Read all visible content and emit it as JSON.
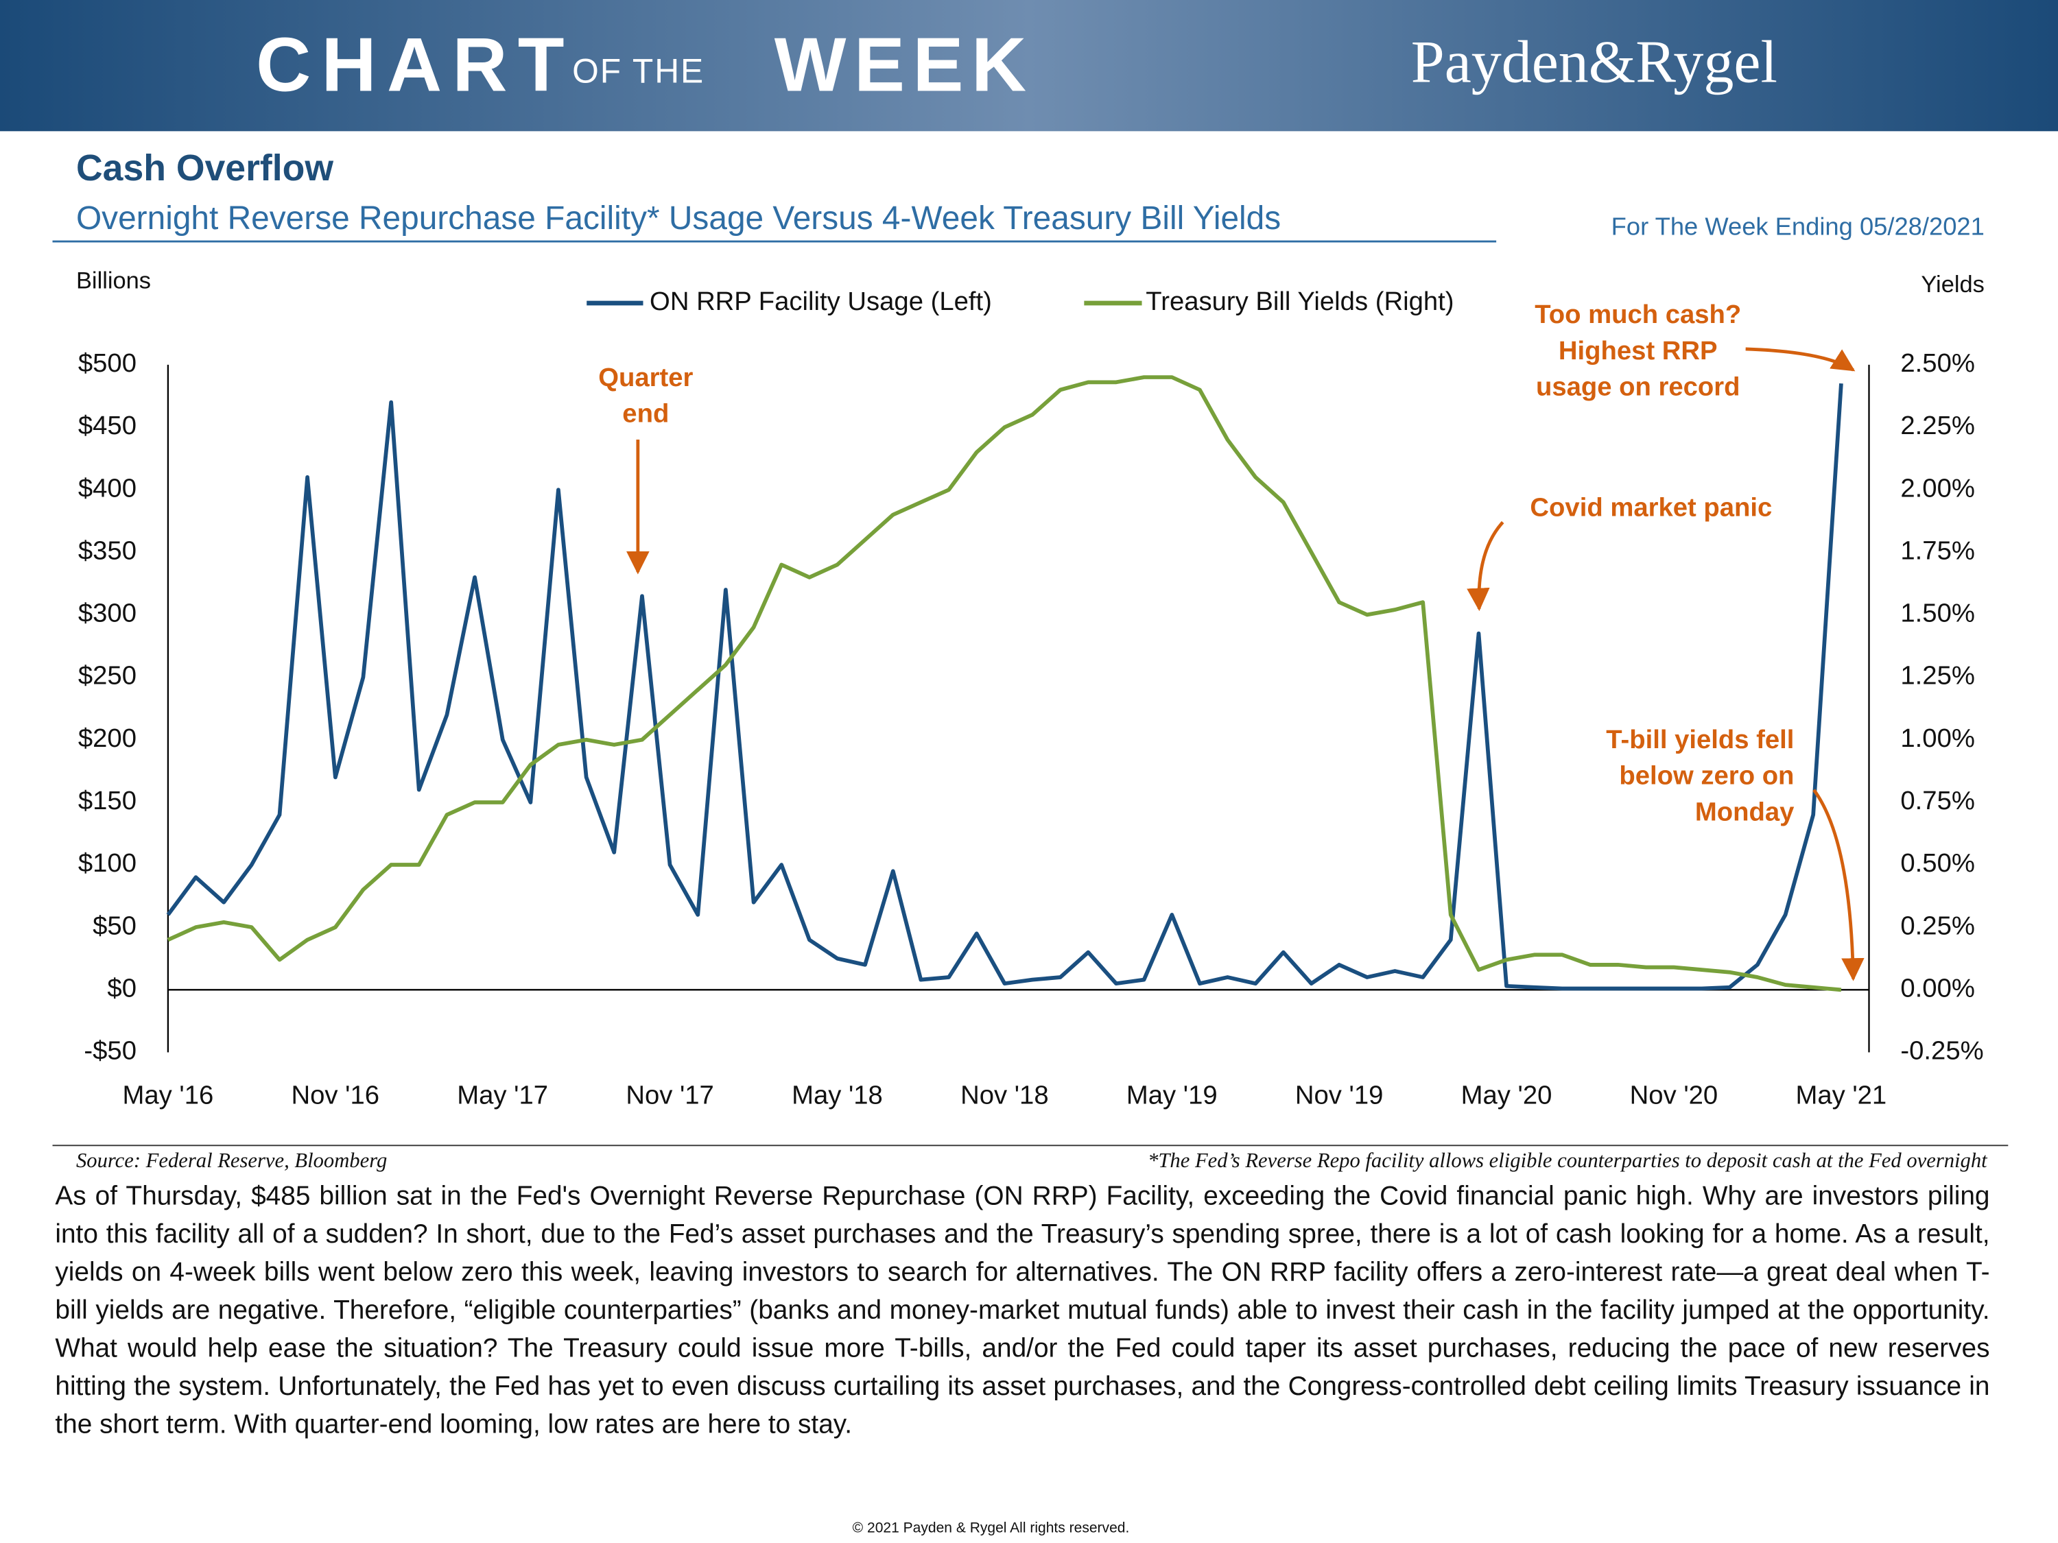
{
  "header": {
    "banner_left": "CHART",
    "banner_mid": "OF THE",
    "banner_right": "WEEK",
    "brand": "Payden&Rygel"
  },
  "chart_data": {
    "type": "line",
    "title": "Cash Overflow",
    "subtitle": "Overnight Reverse Repurchase Facility* Usage Versus 4-Week Treasury Bill Yields",
    "date_note": "For The Week Ending 05/28/2021",
    "y_label": "Billions",
    "y2_label": "Yields",
    "x": [
      "2016-05",
      "2016-06",
      "2016-07",
      "2016-08",
      "2016-09",
      "2016-10",
      "2016-11",
      "2016-12",
      "2017-01",
      "2017-02",
      "2017-03",
      "2017-04",
      "2017-05",
      "2017-06",
      "2017-07",
      "2017-08",
      "2017-09",
      "2017-10",
      "2017-11",
      "2017-12",
      "2018-01",
      "2018-02",
      "2018-03",
      "2018-04",
      "2018-05",
      "2018-06",
      "2018-07",
      "2018-08",
      "2018-09",
      "2018-10",
      "2018-11",
      "2018-12",
      "2019-01",
      "2019-02",
      "2019-03",
      "2019-04",
      "2019-05",
      "2019-06",
      "2019-07",
      "2019-08",
      "2019-09",
      "2019-10",
      "2019-11",
      "2019-12",
      "2020-01",
      "2020-02",
      "2020-03",
      "2020-04",
      "2020-05",
      "2020-06",
      "2020-07",
      "2020-08",
      "2020-09",
      "2020-10",
      "2020-11",
      "2020-12",
      "2021-01",
      "2021-02",
      "2021-03",
      "2021-04",
      "2021-05"
    ],
    "xlim": [
      "2016-05",
      "2021-06"
    ],
    "xticks": [
      {
        "value": "2016-05",
        "label": "May '16"
      },
      {
        "value": "2016-11",
        "label": "Nov '16"
      },
      {
        "value": "2017-05",
        "label": "May '17"
      },
      {
        "value": "2017-11",
        "label": "Nov '17"
      },
      {
        "value": "2018-05",
        "label": "May '18"
      },
      {
        "value": "2018-11",
        "label": "Nov '18"
      },
      {
        "value": "2019-05",
        "label": "May '19"
      },
      {
        "value": "2019-11",
        "label": "Nov '19"
      },
      {
        "value": "2020-05",
        "label": "May '20"
      },
      {
        "value": "2020-11",
        "label": "Nov '20"
      },
      {
        "value": "2021-05",
        "label": "May '21"
      }
    ],
    "ylim": [
      -50,
      500
    ],
    "yticks": [
      {
        "value": -50,
        "label": "-$50"
      },
      {
        "value": 0,
        "label": "$0"
      },
      {
        "value": 50,
        "label": "$50"
      },
      {
        "value": 100,
        "label": "$100"
      },
      {
        "value": 150,
        "label": "$150"
      },
      {
        "value": 200,
        "label": "$200"
      },
      {
        "value": 250,
        "label": "$250"
      },
      {
        "value": 300,
        "label": "$300"
      },
      {
        "value": 350,
        "label": "$350"
      },
      {
        "value": 400,
        "label": "$400"
      },
      {
        "value": 450,
        "label": "$450"
      },
      {
        "value": 500,
        "label": "$500"
      }
    ],
    "y2lim": [
      -0.25,
      2.5
    ],
    "y2ticks": [
      {
        "value": -0.25,
        "label": "-0.25%"
      },
      {
        "value": 0,
        "label": "0.00%"
      },
      {
        "value": 0.25,
        "label": "0.25%"
      },
      {
        "value": 0.5,
        "label": "0.50%"
      },
      {
        "value": 0.75,
        "label": "0.75%"
      },
      {
        "value": 1,
        "label": "1.00%"
      },
      {
        "value": 1.25,
        "label": "1.25%"
      },
      {
        "value": 1.5,
        "label": "1.50%"
      },
      {
        "value": 1.75,
        "label": "1.75%"
      },
      {
        "value": 2,
        "label": "2.00%"
      },
      {
        "value": 2.25,
        "label": "2.25%"
      },
      {
        "value": 2.5,
        "label": "2.50%"
      }
    ],
    "series": [
      {
        "name": "ON RRP Facility Usage (Left)",
        "color": "#1a4f80",
        "values": [
          60,
          90,
          70,
          100,
          140,
          410,
          170,
          250,
          470,
          160,
          220,
          330,
          200,
          150,
          400,
          170,
          110,
          315,
          100,
          60,
          320,
          70,
          100,
          40,
          25,
          20,
          95,
          8,
          10,
          45,
          5,
          8,
          10,
          30,
          5,
          8,
          60,
          5,
          10,
          5,
          30,
          5,
          20,
          10,
          15,
          10,
          40,
          285,
          3,
          2,
          1,
          1,
          1,
          1,
          1,
          1,
          2,
          20,
          60,
          140,
          485
        ]
      },
      {
        "name": "Treasury Bill Yields (Right)",
        "color": "#77a03a",
        "axis": "y2",
        "values": [
          0.2,
          0.25,
          0.27,
          0.25,
          0.12,
          0.2,
          0.25,
          0.4,
          0.5,
          0.5,
          0.7,
          0.75,
          0.75,
          0.9,
          0.98,
          1.0,
          0.98,
          1.0,
          1.1,
          1.2,
          1.3,
          1.45,
          1.7,
          1.65,
          1.7,
          1.8,
          1.9,
          1.95,
          2.0,
          2.15,
          2.25,
          2.3,
          2.4,
          2.43,
          2.43,
          2.45,
          2.45,
          2.4,
          2.2,
          2.05,
          1.95,
          1.75,
          1.55,
          1.5,
          1.52,
          1.55,
          0.3,
          0.08,
          0.12,
          0.14,
          0.14,
          0.1,
          0.1,
          0.09,
          0.09,
          0.08,
          0.07,
          0.05,
          0.02,
          0.01,
          0.0
        ]
      }
    ],
    "annotations": [
      {
        "lines": [
          "Quarter",
          "end"
        ]
      },
      {
        "lines": [
          "Too much cash?",
          "Highest RRP",
          "usage on record"
        ]
      },
      {
        "lines": [
          "Covid market panic"
        ]
      },
      {
        "lines": [
          "T-bill yields fell",
          "below zero on",
          "Monday"
        ]
      }
    ],
    "source": "Source: Federal Reserve, Bloomberg",
    "footnote": "*The Fed’s Reverse Repo facility allows eligible counterparties to deposit cash at the Fed overnight"
  },
  "body": {
    "paragraph": "As of Thursday, $485 billion sat in the Fed's Overnight Reverse Repurchase (ON RRP) Facility, exceeding the Covid financial panic high. Why are investors piling into this facility all of a sudden? In short, due to the Fed’s asset purchases and the Treasury’s spending spree, there is a lot of cash looking for a home. As a result, yields on 4-week bills went below zero this week, leaving investors to search for alternatives. The ON RRP facility offers a zero-interest rate—a great deal when T-bill yields are negative. Therefore, “eligible counterparties” (banks and money-market mutual funds) able to invest their cash in the facility jumped at the opportunity. What would help ease the situation? The Treasury could issue more T-bills, and/or the Fed could taper its asset purchases, reducing the pace of new reserves hitting the system. Unfortunately, the Fed has yet to even discuss curtailing its asset purchases, and the Congress-controlled debt ceiling limits Treasury issuance in the short term. With quarter-end looming, low rates are here to stay.",
    "copyright": "© 2021 Payden & Rygel All rights reserved."
  }
}
